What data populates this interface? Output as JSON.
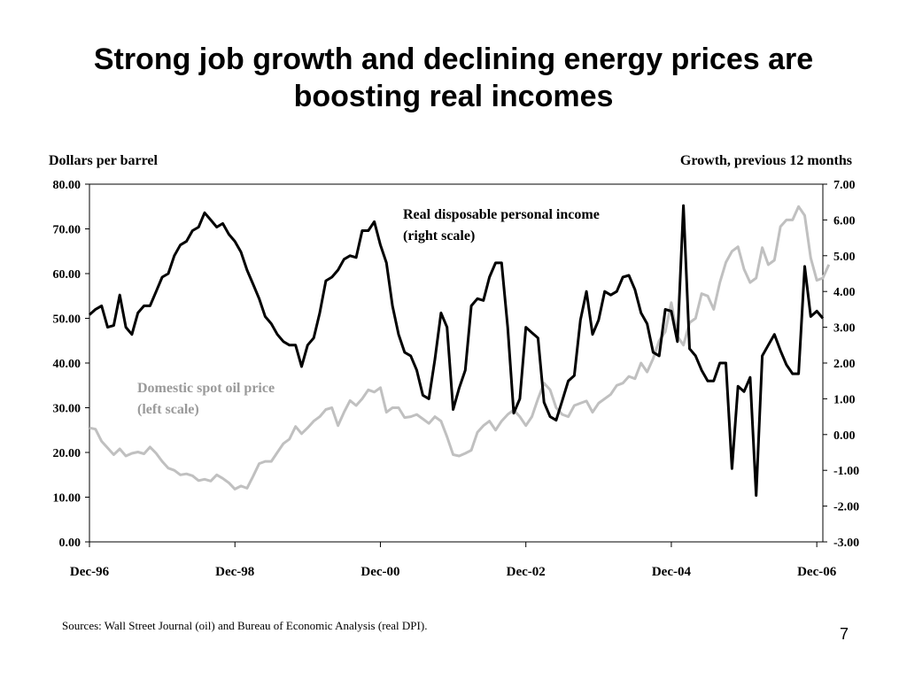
{
  "title": {
    "line1": "Strong job growth and declining energy prices are",
    "line2": "boosting real incomes"
  },
  "chart_data": {
    "type": "line",
    "left_axis_label": "Dollars per barrel",
    "right_axis_label": "Growth, previous 12 months",
    "x_ticks": [
      "Dec-96",
      "Dec-98",
      "Dec-00",
      "Dec-02",
      "Dec-04",
      "Dec-06"
    ],
    "left_ticks": [
      "80.00",
      "70.00",
      "60.00",
      "50.00",
      "40.00",
      "30.00",
      "20.00",
      "10.00",
      "0.00"
    ],
    "right_ticks": [
      "7.00",
      "6.00",
      "5.00",
      "4.00",
      "3.00",
      "2.00",
      "1.00",
      "0.00",
      "-1.00",
      "-2.00",
      "-3.00"
    ],
    "left_ylim": [
      0,
      80
    ],
    "right_ylim": [
      -3,
      7
    ],
    "x_range_months": [
      0,
      121
    ],
    "series": [
      {
        "name": "Domestic spot oil price",
        "label_line1": "Domestic spot oil price",
        "label_line2": "(left scale)",
        "axis": "left",
        "color": "#c0c0c0",
        "values": [
          25.5,
          25.2,
          22.5,
          21.0,
          19.5,
          20.8,
          19.2,
          19.8,
          20.1,
          19.7,
          21.2,
          19.8,
          18.0,
          16.5,
          16.0,
          15.0,
          15.2,
          14.8,
          13.7,
          14.0,
          13.6,
          15.0,
          14.2,
          13.2,
          11.8,
          12.5,
          12.0,
          14.7,
          17.5,
          18.0,
          18.0,
          20.0,
          22.0,
          23.0,
          25.8,
          24.2,
          25.5,
          27.0,
          28.0,
          29.6,
          30.0,
          26.0,
          29.0,
          31.6,
          30.5,
          32.0,
          34.0,
          33.5,
          34.5,
          29.0,
          30.0,
          30.0,
          27.8,
          28.0,
          28.5,
          27.5,
          26.5,
          28.0,
          27.0,
          23.5,
          19.5,
          19.2,
          19.8,
          20.5,
          24.5,
          26.0,
          27.0,
          25.0,
          27.0,
          28.5,
          29.5,
          28.0,
          26.0,
          28.0,
          32.0,
          35.5,
          34.0,
          30.0,
          28.5,
          28.0,
          30.5,
          31.0,
          31.5,
          29.0,
          31.0,
          32.0,
          33.0,
          35.0,
          35.5,
          37.0,
          36.5,
          40.0,
          38.0,
          41.0,
          45.0,
          47.0,
          53.5,
          46.0,
          44.0,
          49.0,
          50.0,
          55.5,
          55.0,
          52.0,
          58.0,
          62.5,
          65.0,
          66.0,
          61.0,
          58.0,
          59.0,
          65.8,
          62.0,
          63.0,
          70.5,
          72.0,
          72.0,
          75.0,
          73.0,
          63.5,
          58.5,
          59.0,
          62.0
        ]
      },
      {
        "name": "Real disposable personal income",
        "label_line1": "Real disposable personal income",
        "label_line2": "(right scale)",
        "axis": "right",
        "color": "#000000",
        "values": [
          3.35,
          3.5,
          3.6,
          3.0,
          3.05,
          3.9,
          3.0,
          2.8,
          3.4,
          3.6,
          3.6,
          4.0,
          4.4,
          4.5,
          5.0,
          5.3,
          5.4,
          5.7,
          5.8,
          6.2,
          6.0,
          5.8,
          5.9,
          5.6,
          5.4,
          5.1,
          4.6,
          4.2,
          3.8,
          3.3,
          3.1,
          2.8,
          2.6,
          2.5,
          2.5,
          1.9,
          2.5,
          2.7,
          3.4,
          4.3,
          4.4,
          4.6,
          4.9,
          5.0,
          4.95,
          5.7,
          5.7,
          5.95,
          5.3,
          4.8,
          3.6,
          2.8,
          2.3,
          2.2,
          1.8,
          1.1,
          1.0,
          2.1,
          3.4,
          3.0,
          0.7,
          1.3,
          1.8,
          3.6,
          3.8,
          3.75,
          4.4,
          4.8,
          4.8,
          3.0,
          0.6,
          1.0,
          3.0,
          2.85,
          2.7,
          0.9,
          0.5,
          0.4,
          0.95,
          1.5,
          1.65,
          3.2,
          4.0,
          2.8,
          3.2,
          4.0,
          3.9,
          4.0,
          4.4,
          4.45,
          4.05,
          3.4,
          3.1,
          2.3,
          2.2,
          3.5,
          3.45,
          2.6,
          6.4,
          2.4,
          2.2,
          1.8,
          1.5,
          1.5,
          2.0,
          2.0,
          -0.95,
          1.35,
          1.2,
          1.6,
          -1.7,
          2.2,
          2.5,
          2.8,
          2.35,
          1.95,
          1.7,
          1.7,
          4.7,
          3.3,
          3.45,
          3.25
        ]
      }
    ]
  },
  "source": "Sources: Wall Street Journal (oil) and Bureau of  Economic Analysis (real DPI).",
  "page_number": "7"
}
